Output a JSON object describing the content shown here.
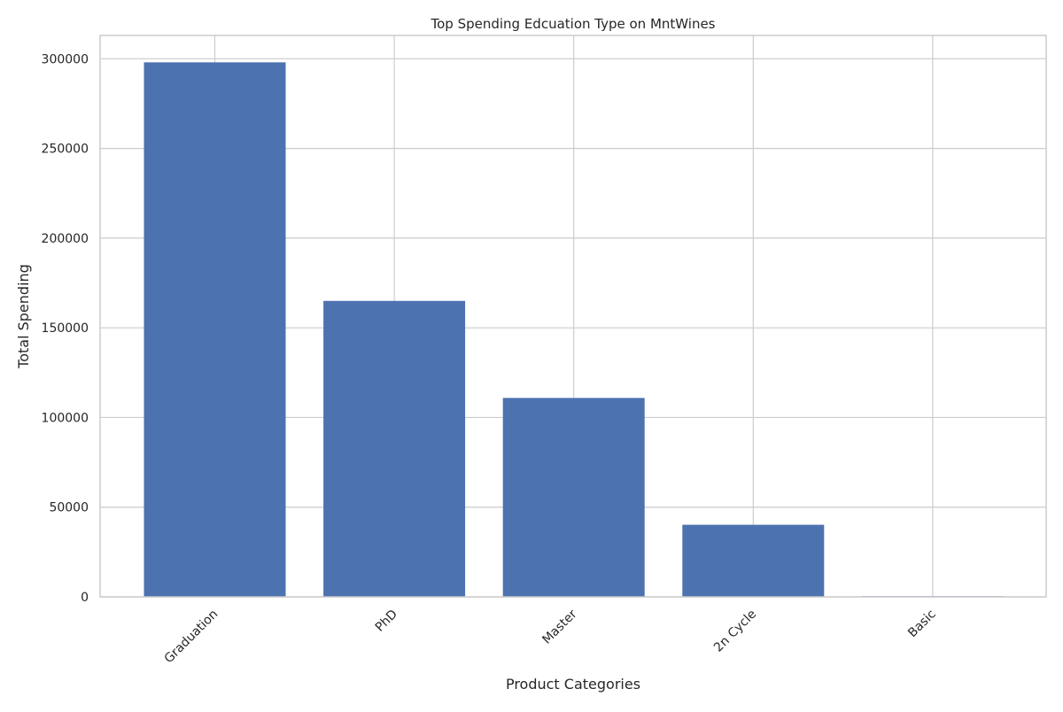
{
  "chart_data": {
    "type": "bar",
    "title": "Top Spending Edcuation Type on MntWines",
    "xlabel": "Product Categories",
    "ylabel": "Total Spending",
    "categories": [
      "Graduation",
      "PhD",
      "Master",
      "2n Cycle",
      "Basic"
    ],
    "values": [
      298000,
      165000,
      110900,
      40200,
      400
    ],
    "ylim": [
      0,
      313000
    ],
    "yticks": [
      0,
      50000,
      100000,
      150000,
      200000,
      250000,
      300000
    ],
    "ytick_labels": [
      "0",
      "50000",
      "100000",
      "150000",
      "200000",
      "250000",
      "300000"
    ],
    "grid": true,
    "bar_color": "#4c72b0",
    "grid_color": "#cccccc",
    "xtick_rotation_deg": 45
  }
}
